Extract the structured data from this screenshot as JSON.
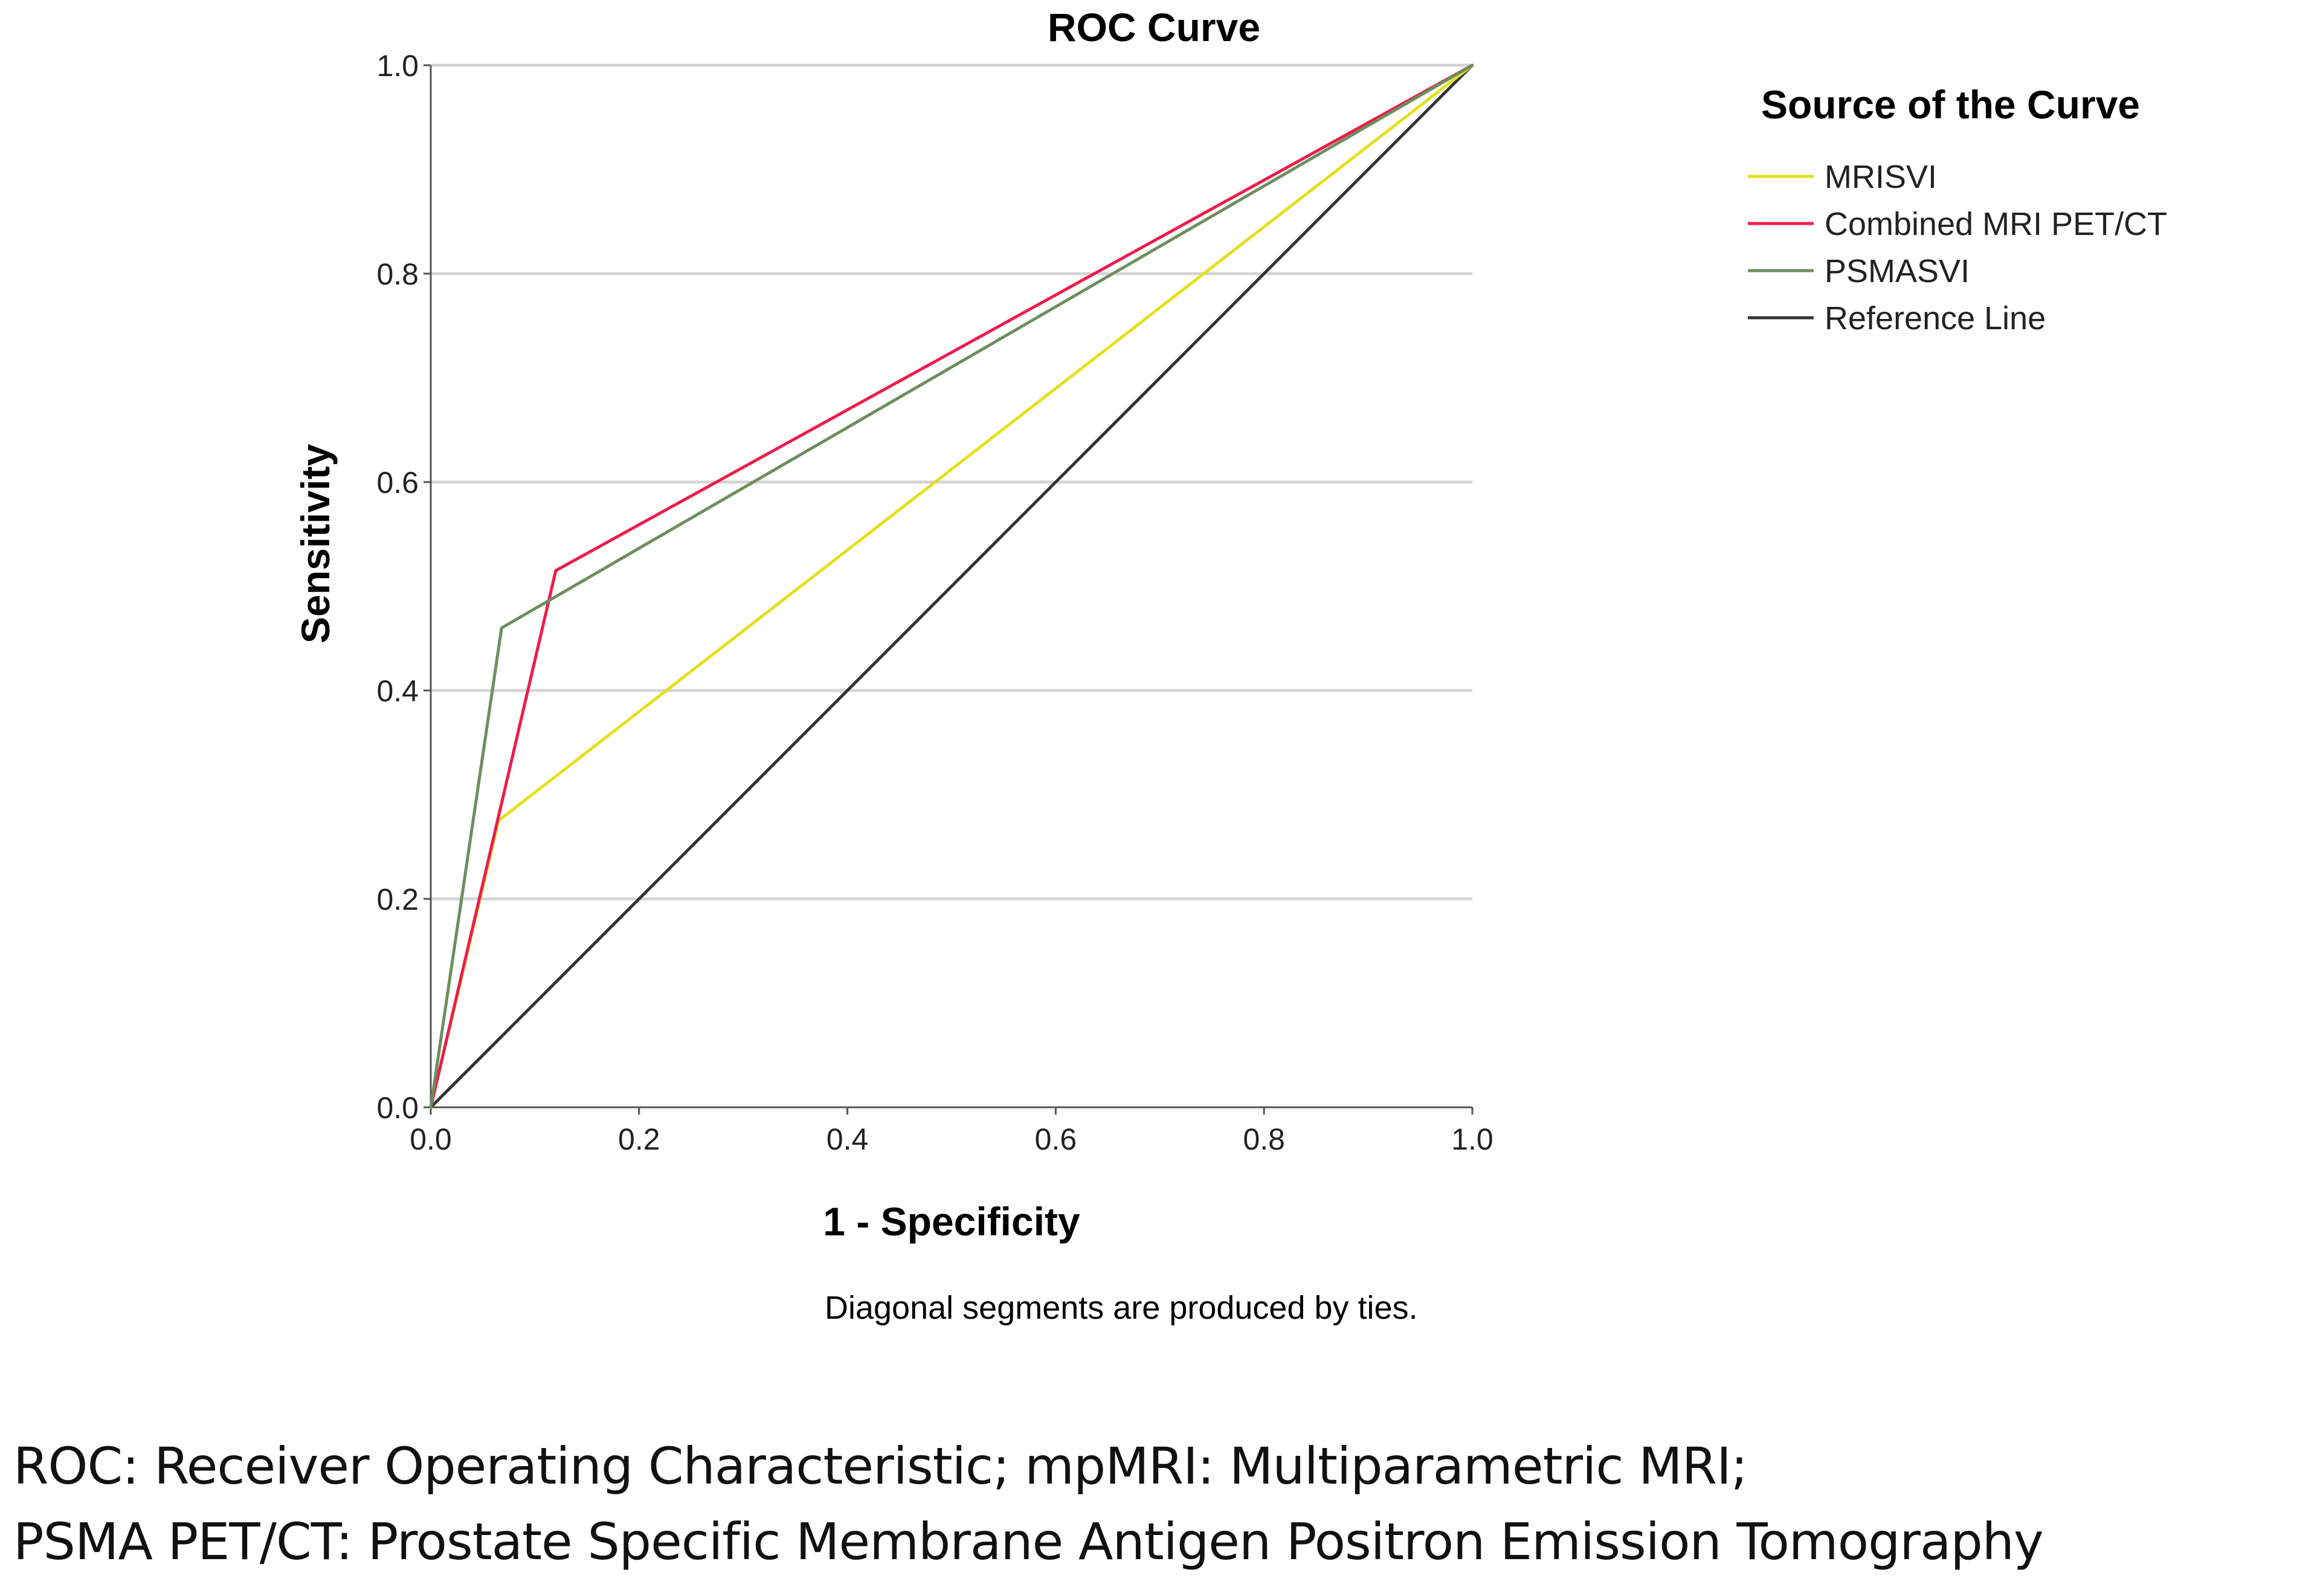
{
  "chart_data": {
    "type": "line",
    "title": "ROC Curve",
    "xlabel": "1 - Specificity",
    "ylabel": "Sensitivity",
    "xlim": [
      0.0,
      1.0
    ],
    "ylim": [
      0.0,
      1.0
    ],
    "xticks": [
      "0.0",
      "0.2",
      "0.4",
      "0.6",
      "0.8",
      "1.0"
    ],
    "yticks": [
      "0.0",
      "0.2",
      "0.4",
      "0.6",
      "0.8",
      "1.0"
    ],
    "xtick_values": [
      0.0,
      0.2,
      0.4,
      0.6,
      0.8,
      1.0
    ],
    "ytick_values": [
      0.0,
      0.2,
      0.4,
      0.6,
      0.8,
      1.0
    ],
    "grid": "horizontal",
    "legend_title": "Source of the Curve",
    "legend_position": "right",
    "note": "Diagonal segments are produced by ties.",
    "series": [
      {
        "name": "MRISVI",
        "color": "#e6df1c",
        "x": [
          0.0,
          0.065,
          1.0
        ],
        "y": [
          0.0,
          0.275,
          1.0
        ]
      },
      {
        "name": "Combined MRI PET/CT",
        "color": "#ee1c4a",
        "x": [
          0.0,
          0.12,
          1.0
        ],
        "y": [
          0.0,
          0.515,
          1.0
        ]
      },
      {
        "name": "PSMASVI",
        "color": "#6b8f5d",
        "x": [
          0.0,
          0.068,
          1.0
        ],
        "y": [
          0.0,
          0.46,
          1.0
        ]
      },
      {
        "name": "Reference Line",
        "color": "#333333",
        "x": [
          0.0,
          1.0
        ],
        "y": [
          0.0,
          1.0
        ]
      }
    ]
  },
  "caption": {
    "line1": "ROC: Receiver Operating Characteristic; mpMRI: Multiparametric MRI;",
    "line2": "PSMA PET/CT: Prostate Specific Membrane Antigen Positron Emission Tomography"
  }
}
